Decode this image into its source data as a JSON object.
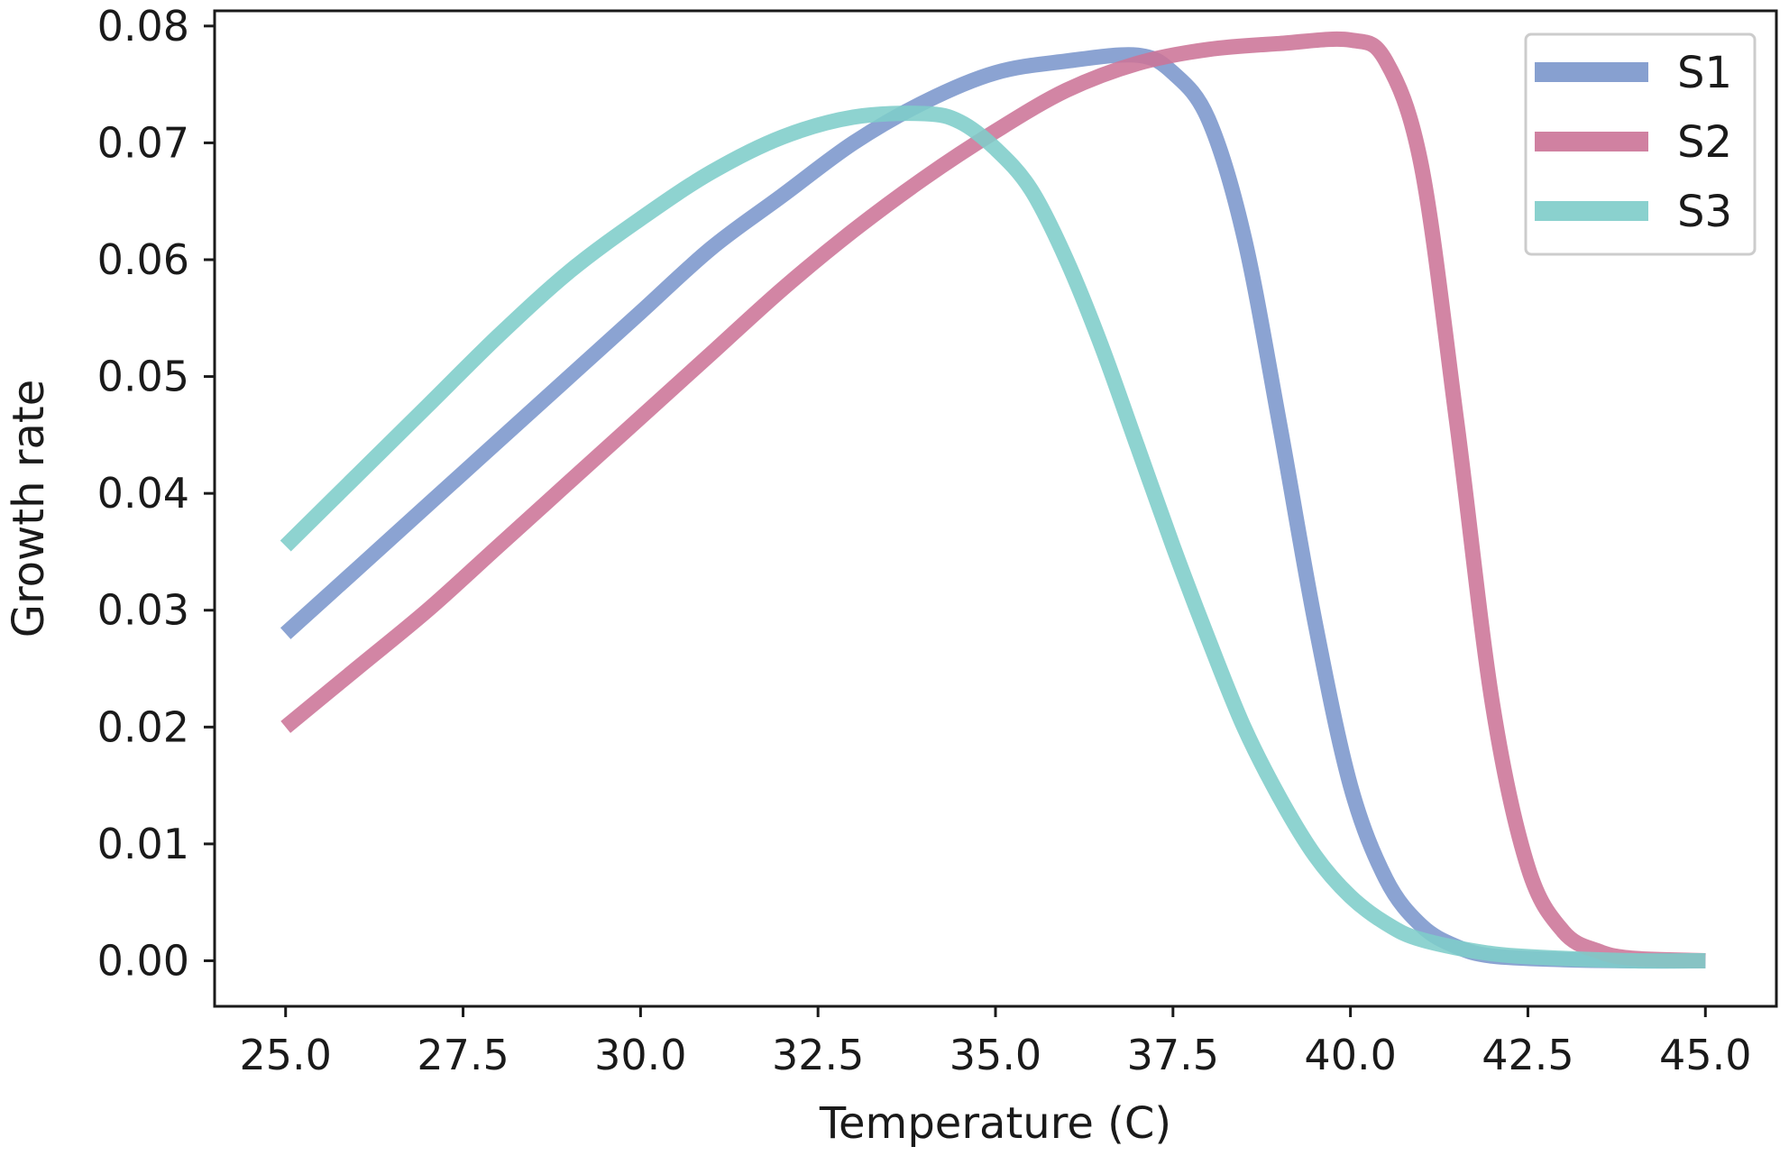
{
  "chart_data": {
    "type": "line",
    "title": "",
    "xlabel": "Temperature (C)",
    "ylabel": "Growth rate",
    "xlim": [
      24.0,
      46.0
    ],
    "ylim": [
      -0.0039,
      0.0813
    ],
    "x_ticks": [
      25.0,
      27.5,
      30.0,
      32.5,
      35.0,
      37.5,
      40.0,
      42.5,
      45.0
    ],
    "x_tick_labels": [
      "25.0",
      "27.5",
      "30.0",
      "32.5",
      "35.0",
      "37.5",
      "40.0",
      "42.5",
      "45.0"
    ],
    "y_ticks": [
      0.0,
      0.01,
      0.02,
      0.03,
      0.04,
      0.05,
      0.06,
      0.07,
      0.08
    ],
    "y_tick_labels": [
      "0.00",
      "0.01",
      "0.02",
      "0.03",
      "0.04",
      "0.05",
      "0.06",
      "0.07",
      "0.08"
    ],
    "grid": false,
    "legend_position": "top-right",
    "series": [
      {
        "name": "S1",
        "color": "#7b96cc",
        "x": [
          25,
          26,
          27,
          28,
          29,
          30,
          31,
          32,
          33,
          34,
          35,
          36,
          37,
          37.5,
          38,
          38.5,
          39,
          39.5,
          40,
          40.5,
          41,
          41.5,
          42,
          43,
          44,
          45
        ],
        "y": [
          0.028,
          0.0335,
          0.039,
          0.0445,
          0.05,
          0.0555,
          0.061,
          0.0655,
          0.07,
          0.0735,
          0.076,
          0.077,
          0.0775,
          0.076,
          0.072,
          0.062,
          0.046,
          0.029,
          0.015,
          0.007,
          0.003,
          0.0012,
          0.0004,
          0.0001,
          0.0,
          0.0
        ]
      },
      {
        "name": "S2",
        "color": "#cc7497",
        "x": [
          25,
          26,
          27,
          28,
          29,
          30,
          31,
          32,
          33,
          34,
          35,
          36,
          37,
          38,
          39,
          40,
          40.5,
          41,
          41.5,
          42,
          42.5,
          43,
          43.5,
          44,
          45
        ],
        "y": [
          0.02,
          0.025,
          0.03,
          0.0355,
          0.041,
          0.0465,
          0.052,
          0.0575,
          0.0625,
          0.067,
          0.071,
          0.0745,
          0.0768,
          0.078,
          0.0785,
          0.0788,
          0.077,
          0.068,
          0.046,
          0.022,
          0.008,
          0.0025,
          0.0008,
          0.0002,
          0.0
        ]
      },
      {
        "name": "S3",
        "color": "#7ecdc9",
        "x": [
          25,
          26,
          27,
          28,
          29,
          30,
          31,
          32,
          33,
          34,
          34.5,
          35,
          35.5,
          36,
          36.5,
          37,
          37.5,
          38,
          38.5,
          39,
          39.5,
          40,
          40.5,
          41,
          42,
          43,
          44,
          45
        ],
        "y": [
          0.0355,
          0.0415,
          0.0475,
          0.0535,
          0.059,
          0.0635,
          0.0675,
          0.0705,
          0.0722,
          0.0725,
          0.0718,
          0.0695,
          0.066,
          0.06,
          0.0525,
          0.044,
          0.0355,
          0.0275,
          0.02,
          0.014,
          0.009,
          0.0055,
          0.0032,
          0.0018,
          0.0006,
          0.0002,
          0.0,
          0.0
        ]
      }
    ]
  }
}
